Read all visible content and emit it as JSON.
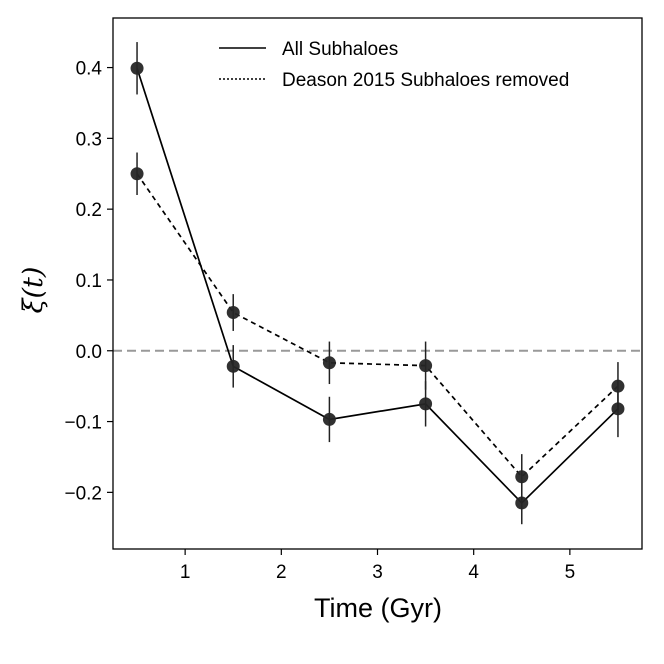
{
  "chart_data": {
    "type": "line",
    "title": "",
    "xlabel": "Time (Gyr)",
    "ylabel": "ξ(t)",
    "xlim": [
      0.25,
      5.75
    ],
    "ylim": [
      -0.28,
      0.47
    ],
    "xticks": [
      1,
      2,
      3,
      4,
      5
    ],
    "yticks": [
      -0.2,
      -0.1,
      0.0,
      0.1,
      0.2,
      0.3,
      0.4
    ],
    "ytick_labels": [
      "−0.2",
      "−0.1",
      "0.0",
      "0.1",
      "0.2",
      "0.3",
      "0.4"
    ],
    "xtick_labels": [
      "1",
      "2",
      "3",
      "4",
      "5"
    ],
    "x": [
      0.5,
      1.5,
      2.5,
      3.5,
      4.5,
      5.5
    ],
    "series": [
      {
        "name": "All Subhaloes",
        "linestyle": "solid",
        "values": [
          0.399,
          -0.022,
          -0.097,
          -0.075,
          -0.215,
          -0.082
        ],
        "errors": [
          0.037,
          0.03,
          0.032,
          0.032,
          0.03,
          0.04
        ]
      },
      {
        "name": "Deason 2015 Subhaloes removed",
        "linestyle": "dashed",
        "legend_linestyle": "dotted",
        "values": [
          0.25,
          0.054,
          -0.017,
          -0.021,
          -0.178,
          -0.05
        ],
        "errors": [
          0.03,
          0.026,
          0.03,
          0.034,
          0.032,
          0.034
        ]
      }
    ],
    "reference_line": {
      "y": 0.0,
      "style": "dashed",
      "color": "#999999"
    },
    "legend_position": "top-right",
    "marker_color": "#262626",
    "line_color": "#000000"
  }
}
